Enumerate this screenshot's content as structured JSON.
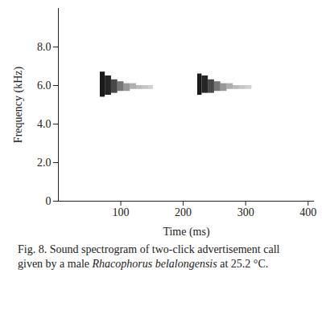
{
  "chart_data": {
    "type": "spectrogram",
    "caption": [
      "Fig. 8. Sound spectrogram of two-click advertisement call given by a male ",
      "Rhacophorus belalongensis",
      " at 25.2 °C."
    ],
    "x_label": "Time (ms)",
    "y_label": "Frequency (kHz)",
    "xlim": [
      0,
      410
    ],
    "ylim": [
      0,
      10
    ],
    "xticks": [
      100,
      200,
      300,
      400
    ],
    "yticks": [
      0,
      {
        "value": 2,
        "label": "2.0"
      },
      {
        "value": 4,
        "label": "4.0"
      },
      {
        "value": 6,
        "label": "6.0"
      },
      {
        "value": 8,
        "label": "8.0"
      }
    ],
    "color": "#1a1a1a",
    "cells": [
      {
        "x1": 67,
        "x2": 75,
        "y1": 5.4,
        "y2": 6.7,
        "intensity": 1.0
      },
      {
        "x1": 75,
        "x2": 85,
        "y1": 5.5,
        "y2": 6.5,
        "intensity": 0.95
      },
      {
        "x1": 85,
        "x2": 95,
        "y1": 5.6,
        "y2": 6.3,
        "intensity": 0.8
      },
      {
        "x1": 95,
        "x2": 105,
        "y1": 5.7,
        "y2": 6.2,
        "intensity": 0.6
      },
      {
        "x1": 105,
        "x2": 115,
        "y1": 5.7,
        "y2": 6.1,
        "intensity": 0.45
      },
      {
        "x1": 115,
        "x2": 125,
        "y1": 5.8,
        "y2": 6.1,
        "intensity": 0.35
      },
      {
        "x1": 125,
        "x2": 135,
        "y1": 5.8,
        "y2": 6.0,
        "intensity": 0.3
      },
      {
        "x1": 135,
        "x2": 145,
        "y1": 5.8,
        "y2": 6.0,
        "intensity": 0.25
      },
      {
        "x1": 145,
        "x2": 152,
        "y1": 5.8,
        "y2": 6.0,
        "intensity": 0.2
      },
      {
        "x1": 223,
        "x2": 230,
        "y1": 5.5,
        "y2": 6.6,
        "intensity": 1.0
      },
      {
        "x1": 230,
        "x2": 240,
        "y1": 5.6,
        "y2": 6.5,
        "intensity": 0.95
      },
      {
        "x1": 240,
        "x2": 250,
        "y1": 5.6,
        "y2": 6.3,
        "intensity": 0.8
      },
      {
        "x1": 250,
        "x2": 260,
        "y1": 5.7,
        "y2": 6.2,
        "intensity": 0.6
      },
      {
        "x1": 260,
        "x2": 270,
        "y1": 5.7,
        "y2": 6.1,
        "intensity": 0.45
      },
      {
        "x1": 270,
        "x2": 280,
        "y1": 5.8,
        "y2": 6.1,
        "intensity": 0.35
      },
      {
        "x1": 280,
        "x2": 290,
        "y1": 5.8,
        "y2": 6.0,
        "intensity": 0.3
      },
      {
        "x1": 290,
        "x2": 300,
        "y1": 5.8,
        "y2": 6.0,
        "intensity": 0.25
      },
      {
        "x1": 300,
        "x2": 310,
        "y1": 5.8,
        "y2": 6.0,
        "intensity": 0.2
      }
    ]
  }
}
